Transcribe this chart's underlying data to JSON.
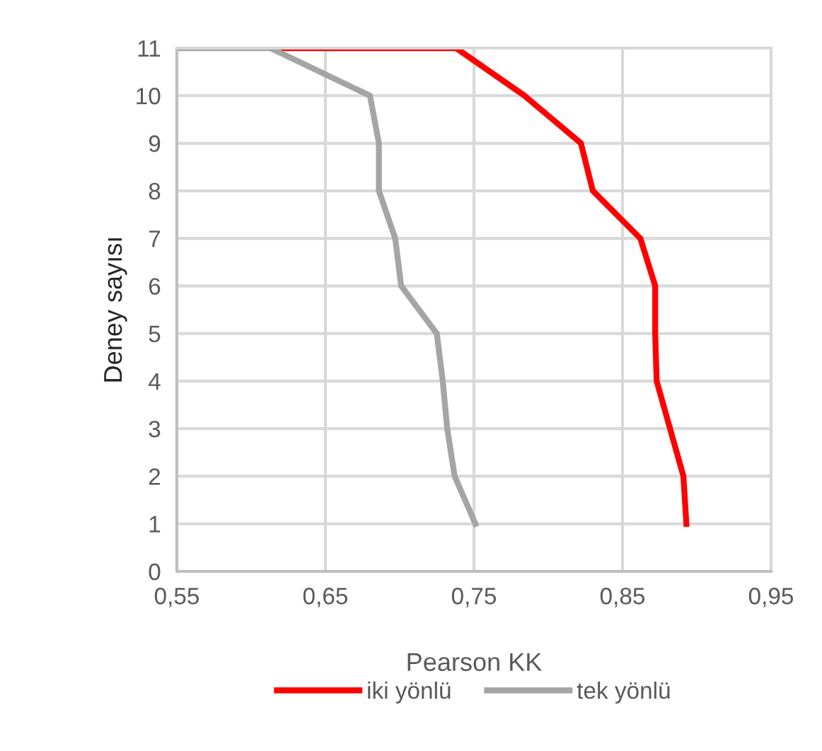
{
  "chart_data": {
    "type": "line",
    "xlabel": "Pearson KK",
    "ylabel": "Deney sayısı",
    "xlim": [
      0.55,
      0.95
    ],
    "xticks": [
      {
        "value": 0.55,
        "label": "0,55"
      },
      {
        "value": 0.65,
        "label": "0,65"
      },
      {
        "value": 0.75,
        "label": "0,75"
      },
      {
        "value": 0.85,
        "label": "0,85"
      },
      {
        "value": 0.95,
        "label": "0,95"
      }
    ],
    "ylim": [
      0,
      11
    ],
    "yticks": [
      0,
      1,
      2,
      3,
      4,
      5,
      6,
      7,
      8,
      9,
      10,
      11
    ],
    "grid": true,
    "legend": "bottom",
    "marker": "none",
    "line_style": "solid",
    "series": [
      {
        "name": "iki yönlü",
        "color": "#ff0000",
        "x": [
          0.893,
          0.891,
          0.882,
          0.873,
          0.872,
          0.872,
          0.862,
          0.83,
          0.822,
          0.784,
          0.738,
          0.616
        ],
        "values": [
          1,
          2,
          3,
          4,
          5,
          6,
          7,
          8,
          9,
          10,
          11,
          11
        ]
      },
      {
        "name": "tek yönlü",
        "color": "#a5a5a5",
        "x": [
          0.751,
          0.737,
          0.732,
          0.729,
          0.725,
          0.701,
          0.697,
          0.686,
          0.686,
          0.68,
          0.613,
          0.55
        ],
        "values": [
          1,
          2,
          3,
          4,
          5,
          6,
          7,
          8,
          9,
          10,
          11,
          11
        ]
      }
    ]
  }
}
